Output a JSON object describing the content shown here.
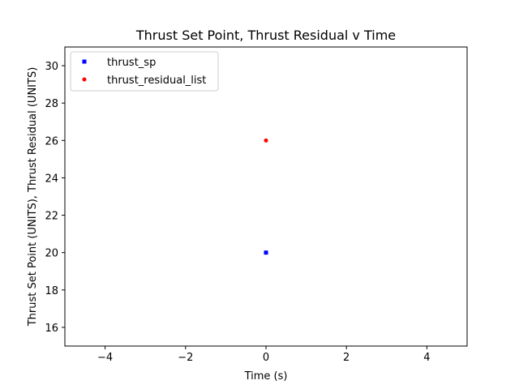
{
  "chart_data": {
    "type": "scatter",
    "title": "Thrust Set Point, Thrust Residual v Time",
    "xlabel": "Time (s)",
    "ylabel": "Thrust Set Point (UNITS), Thrust Residual (UNITS)",
    "xlim": [
      -5,
      5
    ],
    "ylim": [
      15,
      31
    ],
    "xticks": [
      -4,
      -2,
      0,
      2,
      4
    ],
    "xtick_labels": [
      "−4",
      "−2",
      "0",
      "2",
      "4"
    ],
    "yticks": [
      16,
      18,
      20,
      22,
      24,
      26,
      28,
      30
    ],
    "ytick_labels": [
      "16",
      "18",
      "20",
      "22",
      "24",
      "26",
      "28",
      "30"
    ],
    "grid": false,
    "legend_position": "top-left",
    "series": [
      {
        "name": "thrust_sp",
        "color": "#0000ff",
        "marker": "square",
        "x": [
          0
        ],
        "y": [
          20
        ]
      },
      {
        "name": "thrust_residual_list",
        "color": "#ff0000",
        "marker": "circle",
        "x": [
          0
        ],
        "y": [
          26
        ]
      }
    ]
  }
}
